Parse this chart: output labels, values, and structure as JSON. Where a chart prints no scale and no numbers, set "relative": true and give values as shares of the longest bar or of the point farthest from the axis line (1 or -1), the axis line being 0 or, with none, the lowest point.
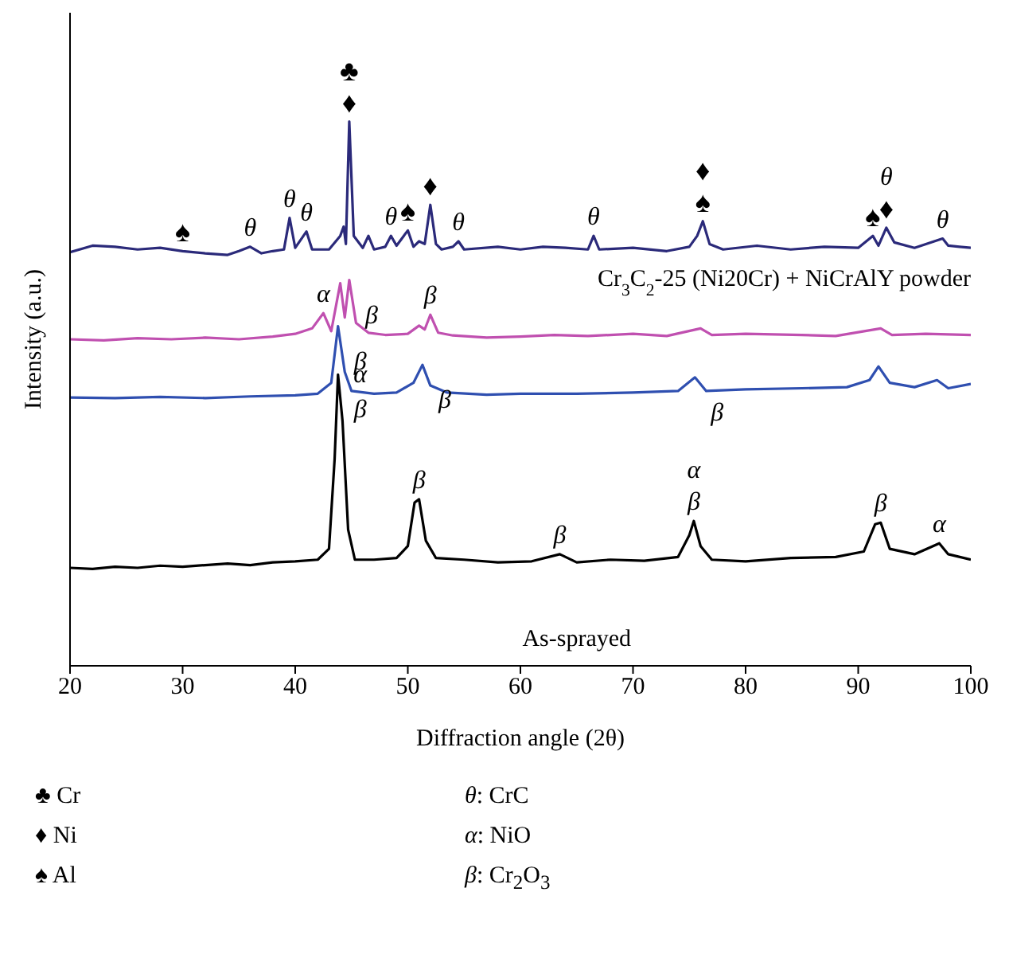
{
  "chart_data": {
    "type": "line",
    "relative": true,
    "xlabel": "Diffraction angle (2θ)",
    "ylabel": "Intensity (a.u.)",
    "xlim": [
      20,
      100
    ],
    "xticks": [
      20,
      30,
      40,
      50,
      60,
      70,
      80,
      90,
      100
    ],
    "grid": false,
    "legend": false,
    "marker": "none",
    "line_style": "solid",
    "series": [
      {
        "name": "Cr$_{3}$C$_{2}$-25 (Ni20Cr) + NiCrAlY powder",
        "color": "#2b2a7a",
        "x": [
          20,
          22,
          24,
          26,
          28,
          30,
          32,
          34,
          35,
          36,
          37,
          38,
          39,
          39.5,
          40,
          41,
          41.5,
          43,
          44,
          44.3,
          44.5,
          44.8,
          45.2,
          46,
          46.5,
          47,
          48,
          48.5,
          49,
          50,
          50.5,
          51,
          51.5,
          52,
          52.5,
          53,
          54,
          54.5,
          55,
          58,
          60,
          62,
          64,
          66,
          66.5,
          67,
          70,
          73,
          75,
          75.7,
          76.2,
          76.8,
          78,
          81,
          84,
          87,
          90,
          91.3,
          91.8,
          92.5,
          93.2,
          95,
          97.5,
          98,
          99,
          100
        ],
        "values": [
          0.76,
          0.772,
          0.77,
          0.765,
          0.768,
          0.762,
          0.758,
          0.755,
          0.762,
          0.77,
          0.758,
          0.762,
          0.765,
          0.823,
          0.768,
          0.798,
          0.765,
          0.765,
          0.79,
          0.807,
          0.775,
          1.0,
          0.79,
          0.768,
          0.79,
          0.765,
          0.77,
          0.79,
          0.772,
          0.8,
          0.77,
          0.78,
          0.775,
          0.847,
          0.775,
          0.765,
          0.77,
          0.78,
          0.765,
          0.77,
          0.765,
          0.77,
          0.768,
          0.765,
          0.79,
          0.765,
          0.768,
          0.762,
          0.77,
          0.79,
          0.817,
          0.775,
          0.765,
          0.772,
          0.765,
          0.77,
          0.768,
          0.79,
          0.772,
          0.805,
          0.778,
          0.768,
          0.785,
          0.772,
          0.77,
          0.768
        ]
      },
      {
        "color": "#c050b0",
        "x": [
          20,
          23,
          26,
          29,
          32,
          35,
          38,
          40,
          41.5,
          42.5,
          43.2,
          44,
          44.4,
          44.8,
          45.4,
          46.5,
          48,
          50,
          51,
          51.5,
          52,
          52.7,
          54,
          57,
          60,
          63,
          66,
          70,
          73,
          76,
          77,
          80,
          85,
          88,
          92,
          93,
          96,
          100
        ],
        "values": [
          0.6,
          0.598,
          0.602,
          0.6,
          0.603,
          0.6,
          0.605,
          0.61,
          0.62,
          0.648,
          0.615,
          0.703,
          0.64,
          0.709,
          0.63,
          0.612,
          0.608,
          0.61,
          0.625,
          0.618,
          0.645,
          0.612,
          0.607,
          0.603,
          0.605,
          0.608,
          0.606,
          0.61,
          0.606,
          0.62,
          0.608,
          0.61,
          0.608,
          0.606,
          0.62,
          0.608,
          0.61,
          0.608
        ]
      },
      {
        "color": "#2f4fb0",
        "x": [
          20,
          24,
          28,
          32,
          36,
          40,
          42,
          43.2,
          43.8,
          44.4,
          45,
          47,
          49,
          50.5,
          51.3,
          52,
          53.5,
          57,
          60,
          65,
          70,
          74,
          75.5,
          76.5,
          80,
          85,
          89,
          91,
          91.8,
          92.8,
          95,
          97,
          98,
          100
        ],
        "values": [
          0.493,
          0.492,
          0.494,
          0.492,
          0.495,
          0.497,
          0.5,
          0.52,
          0.624,
          0.54,
          0.505,
          0.5,
          0.502,
          0.52,
          0.553,
          0.515,
          0.502,
          0.498,
          0.5,
          0.5,
          0.502,
          0.505,
          0.53,
          0.505,
          0.508,
          0.51,
          0.512,
          0.525,
          0.55,
          0.52,
          0.512,
          0.525,
          0.51,
          0.518
        ]
      },
      {
        "color": "#000000",
        "x": [
          20,
          22,
          24,
          26,
          28,
          30,
          32,
          34,
          36,
          38,
          40,
          42,
          43,
          43.5,
          43.8,
          44.2,
          44.7,
          45.3,
          47,
          49,
          50,
          50.6,
          51,
          51.6,
          52.5,
          55,
          58,
          61,
          63.5,
          65,
          68,
          71,
          74,
          75,
          75.4,
          76,
          77,
          80,
          84,
          88,
          90.5,
          91.5,
          92,
          92.8,
          95,
          97.2,
          98,
          100
        ],
        "values": [
          0.18,
          0.178,
          0.182,
          0.18,
          0.184,
          0.182,
          0.185,
          0.188,
          0.185,
          0.19,
          0.192,
          0.195,
          0.215,
          0.38,
          0.535,
          0.45,
          0.25,
          0.195,
          0.195,
          0.198,
          0.22,
          0.3,
          0.306,
          0.23,
          0.198,
          0.195,
          0.19,
          0.192,
          0.205,
          0.19,
          0.195,
          0.193,
          0.2,
          0.24,
          0.266,
          0.22,
          0.195,
          0.192,
          0.198,
          0.2,
          0.21,
          0.26,
          0.263,
          0.215,
          0.205,
          0.225,
          0.205,
          0.195
        ]
      }
    ],
    "annotations": [
      "As-sprayed",
      "♣ Cr",
      "θ: CrC",
      "♦ Ni",
      "α: NiO",
      "♠ Al",
      "β: Cr$_{2}$O$_{3}$",
      {
        "text": "♠",
        "x": 30,
        "y": 0.762
      },
      {
        "text": "θ",
        "x": 36,
        "y": 0.77
      },
      {
        "text": "θ",
        "x": 39.5,
        "y": 0.823
      },
      {
        "text": "θ",
        "x": 41,
        "y": 0.798
      },
      {
        "text": "♦",
        "x": 44.8,
        "y": 1.0
      },
      {
        "text": "♣",
        "x": 44.8,
        "y": 1.0
      },
      {
        "text": "θ",
        "x": 48.5,
        "y": 0.79
      },
      {
        "text": "♠",
        "x": 50,
        "y": 0.8
      },
      {
        "text": "♦",
        "x": 52,
        "y": 0.847
      },
      {
        "text": "θ",
        "x": 54.5,
        "y": 0.78
      },
      {
        "text": "θ",
        "x": 66.5,
        "y": 0.79
      },
      {
        "text": "♠",
        "x": 76.2,
        "y": 0.817
      },
      {
        "text": "♦",
        "x": 76.2,
        "y": 0.817
      },
      {
        "text": "♠",
        "x": 91.3,
        "y": 0.79
      },
      {
        "text": "♦",
        "x": 92.5,
        "y": 0.805
      },
      {
        "text": "θ",
        "x": 92.5,
        "y": 0.805
      },
      {
        "text": "θ",
        "x": 97.5,
        "y": 0.785
      },
      {
        "text": "α",
        "x": 42.5,
        "y": 0.648
      },
      {
        "text": "β",
        "x": 44.8,
        "y": 0.709
      },
      {
        "text": "β",
        "x": 52,
        "y": 0.645
      },
      {
        "text": "β",
        "x": 43.8,
        "y": 0.624
      },
      {
        "text": "β",
        "x": 51.3,
        "y": 0.553
      },
      {
        "text": "β",
        "x": 75.5,
        "y": 0.53
      },
      {
        "text": "β",
        "x": 43.8,
        "y": 0.535
      },
      {
        "text": "α",
        "x": 43.8,
        "y": 0.535
      },
      {
        "text": "β",
        "x": 51,
        "y": 0.306
      },
      {
        "text": "β",
        "x": 63.5,
        "y": 0.205
      },
      {
        "text": "β",
        "x": 75.4,
        "y": 0.266
      },
      {
        "text": "α",
        "x": 75.4,
        "y": 0.266
      },
      {
        "text": "β",
        "x": 92,
        "y": 0.263
      },
      {
        "text": "α",
        "x": 97.2,
        "y": 0.225
      }
    ]
  }
}
